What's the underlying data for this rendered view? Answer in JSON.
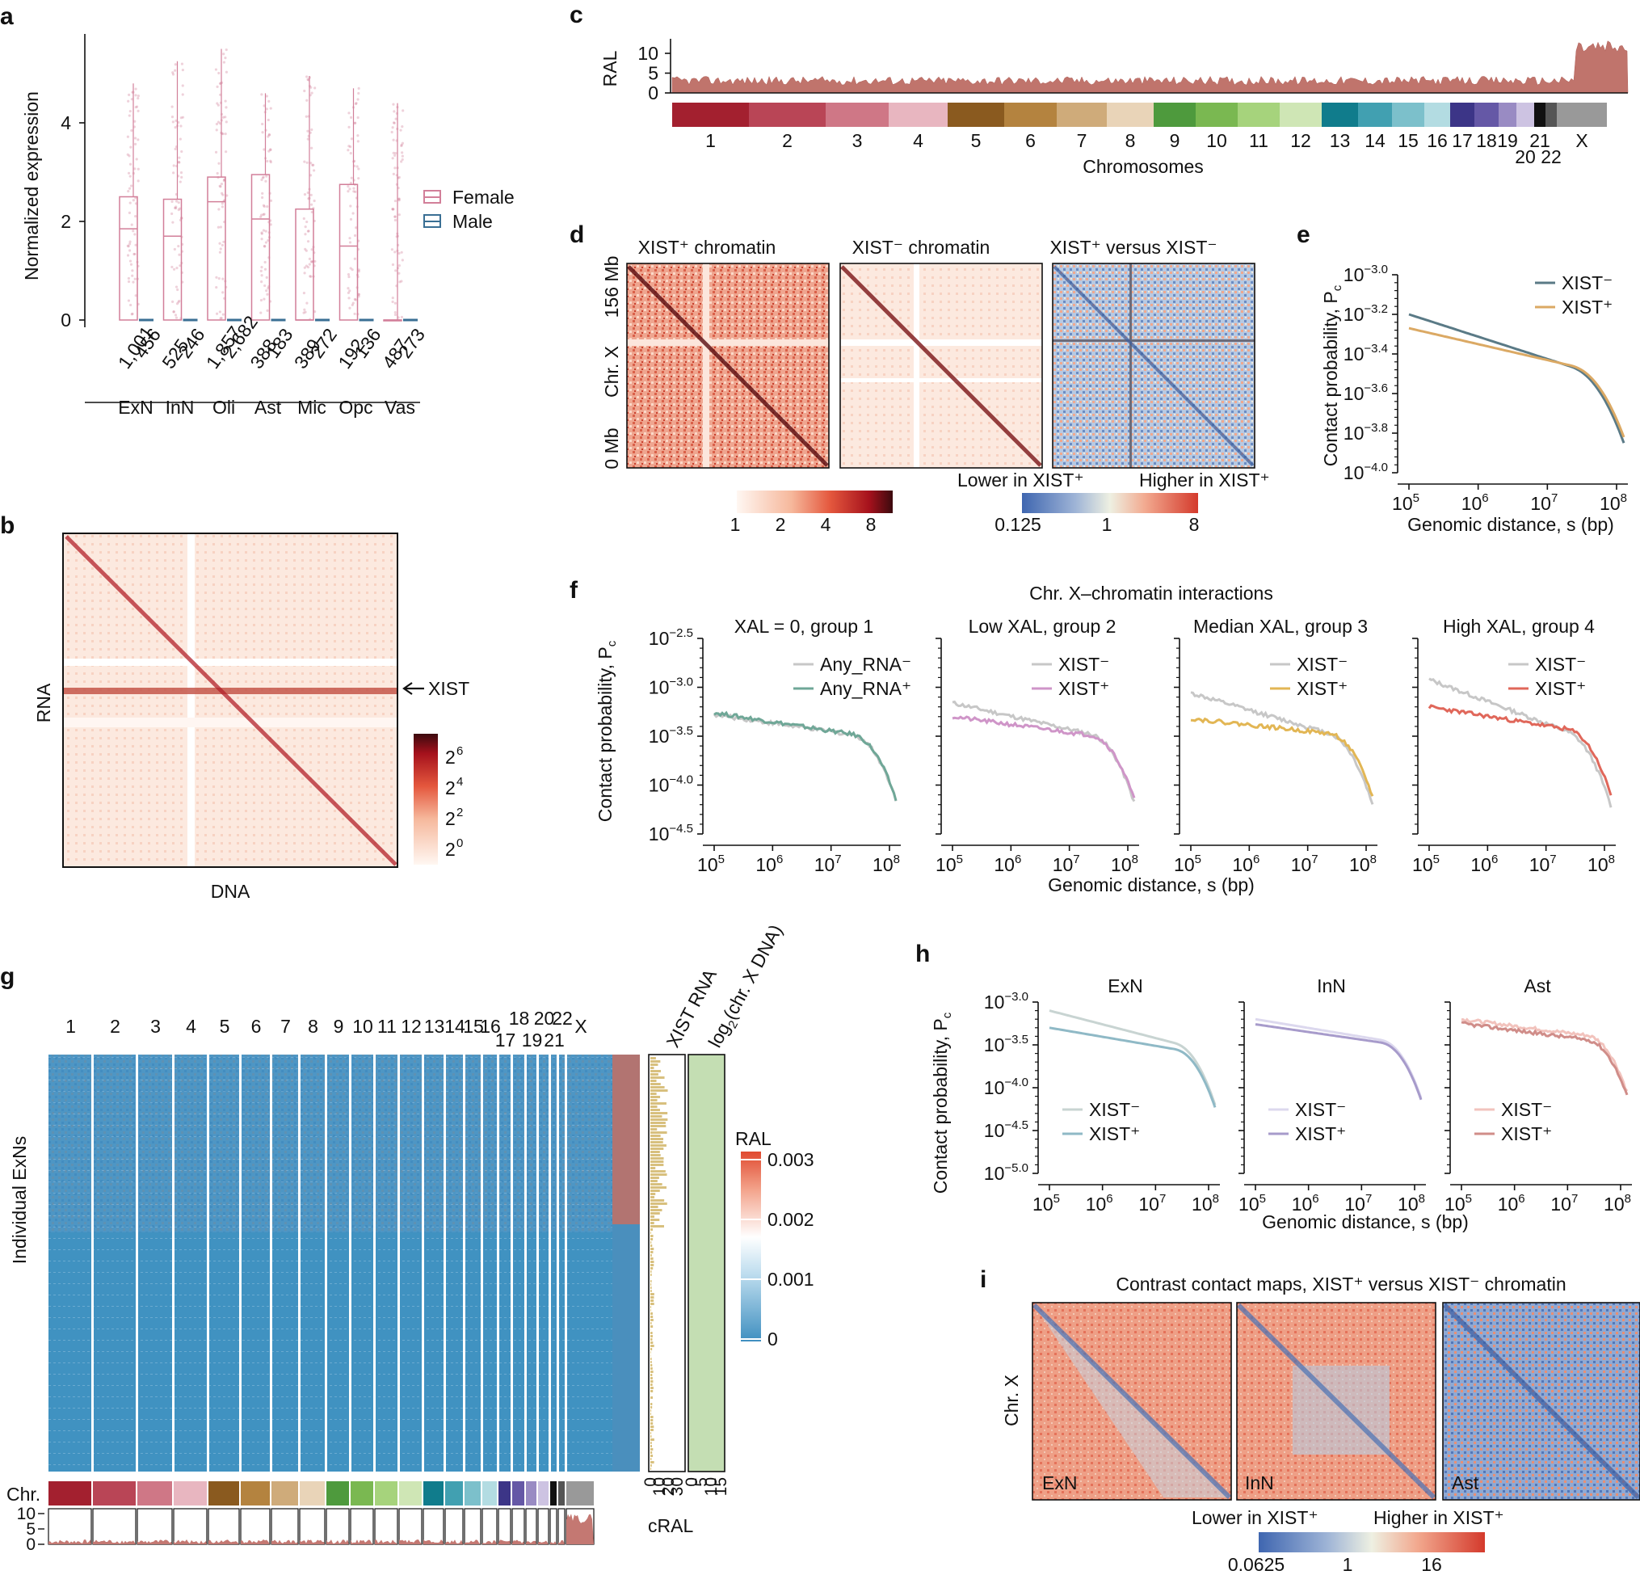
{
  "panels": {
    "a": {
      "letter": "a",
      "ylabel": "Normalized expression",
      "yticks": [
        "0",
        "2",
        "4"
      ],
      "ymax": 5.5,
      "categories": [
        "ExN",
        "InN",
        "Oli",
        "Ast",
        "Mic",
        "Opc",
        "Vas"
      ],
      "female_n": [
        "1,001",
        "525",
        "1,857",
        "388",
        "389",
        "192",
        "487"
      ],
      "male_n": [
        "456",
        "246",
        "2,682",
        "183",
        "272",
        "136",
        "273"
      ],
      "female_box": [
        {
          "q1": 0,
          "median": 1.85,
          "q3": 2.5,
          "max": 4.8
        },
        {
          "q1": 0,
          "median": 1.7,
          "q3": 2.45,
          "max": 5.25
        },
        {
          "q1": 0,
          "median": 2.4,
          "q3": 2.9,
          "max": 5.5
        },
        {
          "q1": 0,
          "median": 2.05,
          "q3": 2.95,
          "max": 4.6
        },
        {
          "q1": 0,
          "median": 0,
          "q3": 2.25,
          "max": 4.95
        },
        {
          "q1": 0,
          "median": 1.5,
          "q3": 2.75,
          "max": 4.7
        },
        {
          "q1": 0,
          "median": 0,
          "q3": 0,
          "max": 4.4
        }
      ],
      "legend": [
        "Female",
        "Male"
      ],
      "colors": {
        "female": "#d27f99",
        "male": "#3a6f94"
      }
    },
    "b": {
      "letter": "b",
      "ylabel": "RNA",
      "xlabel": "DNA",
      "arrow_label": "XIST",
      "scale_labels": [
        "2",
        "2",
        "2",
        "2"
      ],
      "scale_exps": [
        "6",
        "4",
        "2",
        "0"
      ]
    },
    "c": {
      "letter": "c",
      "ylabel": "RAL",
      "yticks": [
        "0",
        "5",
        "10"
      ],
      "xlabel": "Chromosomes",
      "chrom_labels_top": [
        "1",
        "2",
        "3",
        "4",
        "5",
        "6",
        "7",
        "8",
        "9",
        "10",
        "11",
        "12",
        "13",
        "14",
        "15",
        "16",
        "17",
        "18",
        "19",
        "21",
        "X"
      ],
      "chrom_labels_bottom": [
        "20",
        "22"
      ],
      "chrom_colors": [
        "#a3202f",
        "#b94556",
        "#cf7786",
        "#e8b6c0",
        "#8a5a1f",
        "#b4833f",
        "#cfab7a",
        "#e9d4b8",
        "#4e9a3d",
        "#7ab851",
        "#a6d37c",
        "#cfe6b5",
        "#107c8c",
        "#41a0b1",
        "#7cc0cb",
        "#b3dce2",
        "#3c3587",
        "#6558a6",
        "#998bc3",
        "#cdc3e2",
        "#111111",
        "#555555",
        "#999999"
      ]
    },
    "d": {
      "letter": "d",
      "titles": [
        "XIST⁺ chromatin",
        "XIST⁻ chromatin",
        "XIST⁺ versus XIST⁻"
      ],
      "ylabel_top": "156 Mb",
      "ylabel_mid": "Chr. X",
      "ylabel_bottom": "0 Mb",
      "scale1": [
        "1",
        "2",
        "4",
        "8"
      ],
      "scale2_title_left": "Lower in XIST⁺",
      "scale2_title_right": "Higher in XIST⁺",
      "scale2": [
        "0.125",
        "1",
        "8"
      ]
    },
    "e": {
      "letter": "e",
      "ylabel": "Contact probability, P",
      "ylabel_sub": "c",
      "yticks": [
        "−3.0",
        "−3.2",
        "−3.4",
        "−3.6",
        "−3.8",
        "−4.0"
      ],
      "xticks": [
        "5",
        "6",
        "7",
        "8"
      ],
      "xlabel": "Genomic distance, s (bp)",
      "legend": [
        "XIST⁻",
        "XIST⁺"
      ],
      "colors": [
        "#5a7a86",
        "#dba964"
      ]
    },
    "f": {
      "letter": "f",
      "title": "Chr. X–chromatin interactions",
      "ylabel": "Contact probability, P",
      "ylabel_sub": "c",
      "yticks": [
        "−2.5",
        "−3.0",
        "−3.5",
        "−4.0",
        "−4.5"
      ],
      "xticks": [
        "5",
        "6",
        "7",
        "8"
      ],
      "xlabel": "Genomic distance, s (bp)",
      "groups": [
        {
          "title": "XAL = 0, group 1",
          "legend": [
            "Any_RNA⁻",
            "Any_RNA⁺"
          ],
          "colors": [
            "#c7c7c7",
            "#6fa797"
          ],
          "a": [
            -3.28,
            -3.26
          ],
          "b": [
            -3.55,
            -3.55
          ]
        },
        {
          "title": "Low XAL, group 2",
          "legend": [
            "XIST⁻",
            "XIST⁺"
          ],
          "colors": [
            "#c7c7c7",
            "#cf95c8"
          ],
          "a": [
            -3.16,
            -3.3
          ],
          "b": [
            -3.58,
            -3.55
          ]
        },
        {
          "title": "Median XAL, group 3",
          "legend": [
            "XIST⁻",
            "XIST⁺"
          ],
          "colors": [
            "#c7c7c7",
            "#e2b654"
          ],
          "a": [
            -3.06,
            -3.32
          ],
          "b": [
            -3.6,
            -3.52
          ]
        },
        {
          "title": "High XAL, group 4",
          "legend": [
            "XIST⁻",
            "XIST⁺"
          ],
          "colors": [
            "#c7c7c7",
            "#e0675a"
          ],
          "a": [
            -2.92,
            -3.2
          ],
          "b": [
            -3.62,
            -3.5
          ]
        }
      ]
    },
    "g": {
      "letter": "g",
      "ylabel": "Individual ExNs",
      "chrom_top": [
        "1",
        "2",
        "3",
        "4",
        "5",
        "6",
        "7",
        "8",
        "9",
        "10",
        "11",
        "12",
        "13",
        "14",
        "15",
        "16",
        "18",
        "20",
        "22",
        "X"
      ],
      "chrom_bottom": [
        "17",
        "19",
        "21"
      ],
      "col_xist": "XIST RNA",
      "col_dna": "log",
      "col_dna_sub": "2",
      "col_dna_rest": "(chr. X DNA)",
      "xist_ticks": [
        "0",
        "10",
        "20",
        "30"
      ],
      "dna_ticks": [
        "0",
        "5",
        "10",
        "15"
      ],
      "chr_label": "Chr.",
      "cral_label": "cRAL",
      "cral_ticks": [
        "0",
        "5",
        "10"
      ],
      "ral_title": "RAL",
      "ral_ticks": [
        "0.003",
        "0.002",
        "0.001",
        "0"
      ]
    },
    "h": {
      "letter": "h",
      "ylabel": "Contact probability, P",
      "ylabel_sub": "c",
      "yticks": [
        "−3.0",
        "−3.5",
        "−4.0",
        "−4.5",
        "−5.0"
      ],
      "xticks": [
        "5",
        "6",
        "7",
        "8"
      ],
      "xlabel": "Genomic distance, s (bp)",
      "groups": [
        {
          "title": "ExN",
          "legend": [
            "XIST⁻",
            "XIST⁺"
          ],
          "colors": [
            "#c8d4d2",
            "#8fb9c6"
          ]
        },
        {
          "title": "InN",
          "legend": [
            "XIST⁻",
            "XIST⁺"
          ],
          "colors": [
            "#dcd8ee",
            "#a79bcb"
          ]
        },
        {
          "title": "Ast",
          "legend": [
            "XIST⁻",
            "XIST⁺"
          ],
          "colors": [
            "#f2c3bd",
            "#d08d89"
          ]
        }
      ]
    },
    "i": {
      "letter": "i",
      "title": "Contrast contact maps, XIST⁺ versus XIST⁻ chromatin",
      "ylabel": "Chr. X",
      "maps": [
        "ExN",
        "InN",
        "Ast"
      ],
      "scale_left": "Lower in XIST⁺",
      "scale_right": "Higher in XIST⁺",
      "scale": [
        "0.0625",
        "1",
        "16"
      ]
    }
  }
}
